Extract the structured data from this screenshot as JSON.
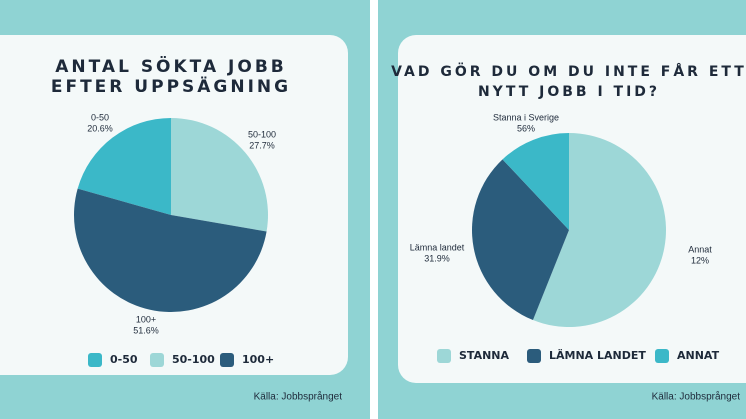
{
  "chart_data": [
    {
      "type": "pie",
      "title": [
        "ANTAL SÖKTA JOBB",
        "EFTER UPPSÄGNING"
      ],
      "categories": [
        "0-50",
        "50-100",
        "100+"
      ],
      "values": [
        20.6,
        27.7,
        51.6
      ],
      "value_labels": [
        "20.6%",
        "27.7%",
        "51.6%"
      ],
      "colors": [
        "#3bb8c8",
        "#9dd7d7",
        "#2b5c7c"
      ],
      "source": "Källa: Jobbsprånget"
    },
    {
      "type": "pie",
      "title": [
        "VAD GÖR DU OM DU INTE FÅR ETT",
        "NYTT JOBB I TID?"
      ],
      "categories": [
        "STANNA",
        "LÄMNA LANDET",
        "ANNAT"
      ],
      "labels": [
        "Stanna i Sverige",
        "Lämna landet",
        "Annat"
      ],
      "values": [
        56,
        31.9,
        12
      ],
      "value_labels": [
        "56%",
        "31.9%",
        "12%"
      ],
      "colors": [
        "#9dd7d7",
        "#2b5c7c",
        "#3bb8c8"
      ],
      "source": "Källa: Jobbsprånget"
    }
  ]
}
